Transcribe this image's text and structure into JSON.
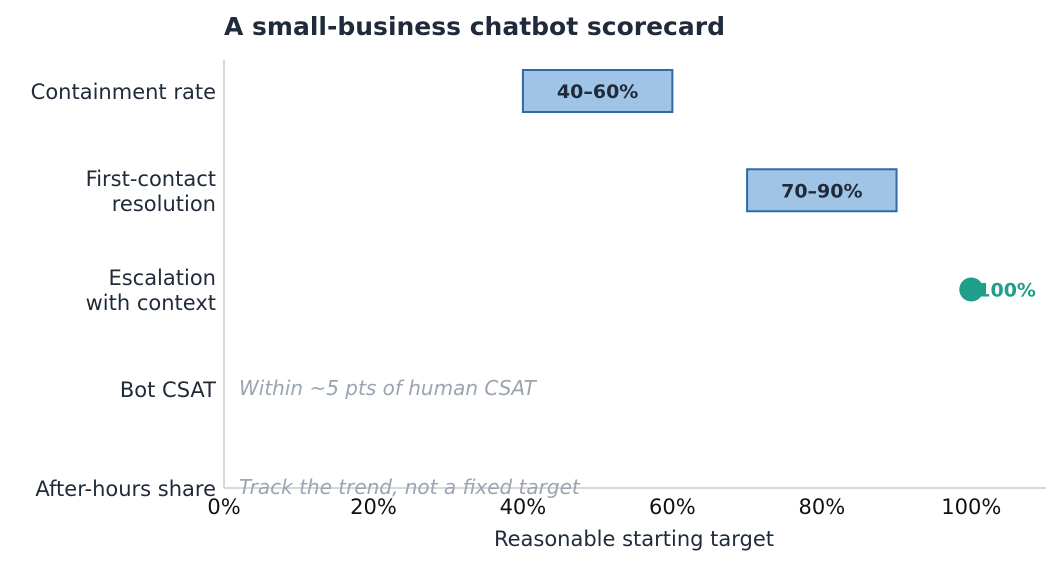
{
  "chart_data": {
    "type": "range-bar",
    "title": "A small-business chatbot scorecard",
    "xlabel": "Reasonable starting target",
    "xlim": [
      0,
      110
    ],
    "xticks": [
      {
        "value": 0,
        "label": "0%"
      },
      {
        "value": 20,
        "label": "20%"
      },
      {
        "value": 40,
        "label": "40%"
      },
      {
        "value": 60,
        "label": "60%"
      },
      {
        "value": 80,
        "label": "80%"
      },
      {
        "value": 100,
        "label": "100%"
      }
    ],
    "grid": false,
    "colors": {
      "range_fill": "#a0c4e6",
      "range_stroke": "#2f6aa8",
      "point": "#1f9e89",
      "note": "#9aa5b1",
      "text": "#1f2a3a",
      "axis": "#cccccc"
    },
    "categories": [
      {
        "lines": [
          "Containment rate"
        ],
        "kind": "range",
        "low": 40,
        "high": 60,
        "label": "40–60%"
      },
      {
        "lines": [
          "First-contact",
          "resolution"
        ],
        "kind": "range",
        "low": 70,
        "high": 90,
        "label": "70–90%"
      },
      {
        "lines": [
          "Escalation",
          "with context"
        ],
        "kind": "point",
        "value": 100,
        "label": "100%"
      },
      {
        "lines": [
          "Bot CSAT"
        ],
        "kind": "note",
        "note": "Within ~5 pts of human CSAT"
      },
      {
        "lines": [
          "After-hours share"
        ],
        "kind": "note",
        "note": "Track the trend, not a fixed target"
      }
    ]
  }
}
